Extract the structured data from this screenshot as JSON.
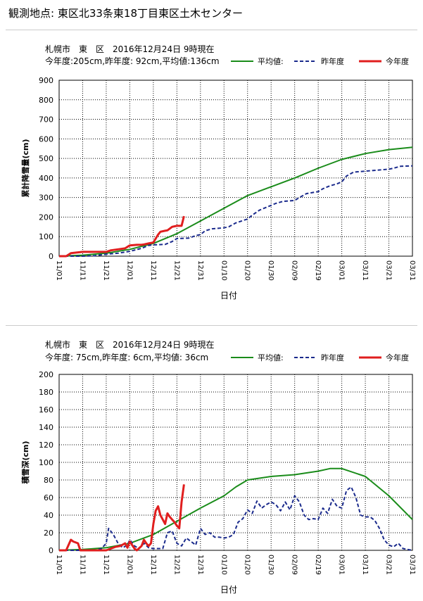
{
  "header": {
    "title": "観測地点: 東区北33条東18丁目東区土木センター"
  },
  "legend_items": [
    {
      "label": "平均値:",
      "color": "#1a8c1a",
      "style": "solid"
    },
    {
      "label": "昨年度",
      "color": "#1a2a8c",
      "style": "dashed"
    },
    {
      "label": "今年度",
      "color": "#e01e1e",
      "style": "solid"
    }
  ],
  "chart_data": [
    {
      "type": "line",
      "title": "札幌市　東　区　2016年12月24日 9時現在",
      "subtitle": "今年度:205cm,昨年度:  92cm,平均値:136cm",
      "xlabel": "日付",
      "ylabel": "累計降雪量(cm)",
      "ylim": [
        0,
        900
      ],
      "yticks": [
        0,
        100,
        200,
        300,
        400,
        500,
        600,
        700,
        800,
        900
      ],
      "x_tick_labels": [
        "11/01",
        "11/11",
        "11/21",
        "12/01",
        "12/11",
        "12/21",
        "12/31",
        "01/10",
        "01/20",
        "01/30",
        "02/09",
        "02/19",
        "03/01",
        "03/11",
        "03/21",
        "03/31"
      ],
      "x_unit": "days from 11/01",
      "xlim": [
        0,
        150
      ],
      "series": [
        {
          "name": "平均値",
          "color": "#1a8c1a",
          "style": "solid",
          "x": [
            0,
            10,
            20,
            30,
            40,
            50,
            60,
            70,
            80,
            90,
            100,
            110,
            120,
            130,
            140,
            150
          ],
          "y": [
            0,
            5,
            15,
            35,
            65,
            115,
            180,
            245,
            310,
            355,
            400,
            450,
            495,
            525,
            545,
            557
          ]
        },
        {
          "name": "昨年度",
          "color": "#1a2a8c",
          "style": "dashed",
          "x": [
            0,
            10,
            15,
            20,
            25,
            30,
            35,
            38,
            40,
            45,
            48,
            50,
            55,
            58,
            60,
            62,
            65,
            70,
            72,
            75,
            80,
            82,
            85,
            90,
            92,
            95,
            100,
            102,
            105,
            110,
            112,
            115,
            118,
            120,
            122,
            125,
            130,
            135,
            140,
            142,
            145,
            150
          ],
          "y": [
            0,
            0,
            2,
            10,
            15,
            25,
            40,
            55,
            58,
            60,
            75,
            90,
            92,
            105,
            110,
            130,
            140,
            145,
            150,
            170,
            190,
            210,
            235,
            260,
            270,
            280,
            285,
            300,
            320,
            330,
            345,
            360,
            370,
            380,
            410,
            430,
            435,
            440,
            445,
            450,
            460,
            462
          ]
        },
        {
          "name": "今年度",
          "color": "#e01e1e",
          "style": "solid",
          "x": [
            0,
            3,
            5,
            7,
            10,
            15,
            20,
            22,
            25,
            28,
            30,
            33,
            35,
            36,
            38,
            40,
            42,
            43,
            45,
            46,
            48,
            50,
            52,
            53
          ],
          "y": [
            0,
            0,
            15,
            18,
            22,
            22,
            22,
            30,
            35,
            40,
            55,
            58,
            58,
            60,
            65,
            70,
            110,
            125,
            130,
            132,
            150,
            155,
            155,
            205
          ]
        }
      ]
    },
    {
      "type": "line",
      "title": "札幌市　東　区　2016年12月24日 9時現在",
      "subtitle": "今年度:  75cm,昨年度:   6cm,平均値:  36cm",
      "xlabel": "日付",
      "ylabel": "積雪深(cm)",
      "ylim": [
        0,
        200
      ],
      "yticks": [
        0,
        20,
        40,
        60,
        80,
        100,
        120,
        140,
        160,
        180,
        200
      ],
      "x_tick_labels": [
        "11/01",
        "11/11",
        "11/21",
        "12/01",
        "12/11",
        "12/21",
        "12/31",
        "01/10",
        "01/20",
        "01/30",
        "02/09",
        "02/19",
        "03/01",
        "03/11",
        "03/21",
        "03/31"
      ],
      "x_unit": "days from 11/01",
      "xlim": [
        0,
        150
      ],
      "series": [
        {
          "name": "平均値",
          "color": "#1a8c1a",
          "style": "solid",
          "x": [
            0,
            10,
            20,
            30,
            40,
            50,
            60,
            70,
            75,
            80,
            90,
            100,
            110,
            115,
            120,
            130,
            140,
            150
          ],
          "y": [
            0,
            1,
            3,
            8,
            18,
            33,
            48,
            62,
            72,
            80,
            84,
            86,
            90,
            93,
            93,
            84,
            62,
            35
          ]
        },
        {
          "name": "昨年度",
          "color": "#1a2a8c",
          "style": "dashed",
          "x": [
            0,
            15,
            18,
            20,
            21,
            23,
            25,
            27,
            29,
            30,
            32,
            34,
            36,
            38,
            40,
            42,
            44,
            46,
            48,
            50,
            52,
            54,
            56,
            58,
            60,
            62,
            64,
            66,
            68,
            70,
            72,
            74,
            76,
            78,
            80,
            82,
            84,
            86,
            88,
            90,
            92,
            94,
            96,
            98,
            100,
            102,
            104,
            106,
            108,
            110,
            112,
            114,
            116,
            118,
            120,
            122,
            124,
            126,
            128,
            130,
            132,
            134,
            136,
            138,
            140,
            142,
            144,
            146,
            150
          ],
          "y": [
            0,
            0,
            2,
            8,
            25,
            18,
            8,
            3,
            6,
            12,
            5,
            2,
            8,
            3,
            2,
            2,
            2,
            20,
            22,
            8,
            5,
            14,
            10,
            6,
            25,
            18,
            20,
            15,
            15,
            14,
            15,
            18,
            32,
            36,
            46,
            42,
            56,
            48,
            52,
            55,
            52,
            45,
            55,
            46,
            62,
            55,
            40,
            35,
            36,
            35,
            48,
            42,
            58,
            50,
            48,
            68,
            72,
            60,
            40,
            38,
            38,
            34,
            25,
            12,
            6,
            4,
            8,
            2,
            0
          ]
        },
        {
          "name": "今年度",
          "color": "#e01e1e",
          "style": "solid",
          "x": [
            0,
            3,
            5,
            6,
            8,
            9,
            10,
            12,
            14,
            16,
            18,
            20,
            22,
            24,
            26,
            28,
            29,
            30,
            31,
            32,
            33,
            35,
            36,
            37,
            38,
            39,
            40,
            41,
            42,
            43,
            44,
            45,
            46,
            47,
            48,
            49,
            50,
            51,
            52,
            53
          ],
          "y": [
            0,
            0,
            12,
            10,
            8,
            0,
            0,
            0,
            0,
            0,
            0,
            0,
            2,
            4,
            5,
            8,
            3,
            10,
            6,
            2,
            0,
            5,
            12,
            8,
            5,
            8,
            30,
            45,
            50,
            40,
            35,
            30,
            42,
            38,
            35,
            32,
            28,
            25,
            55,
            75
          ]
        }
      ]
    }
  ]
}
